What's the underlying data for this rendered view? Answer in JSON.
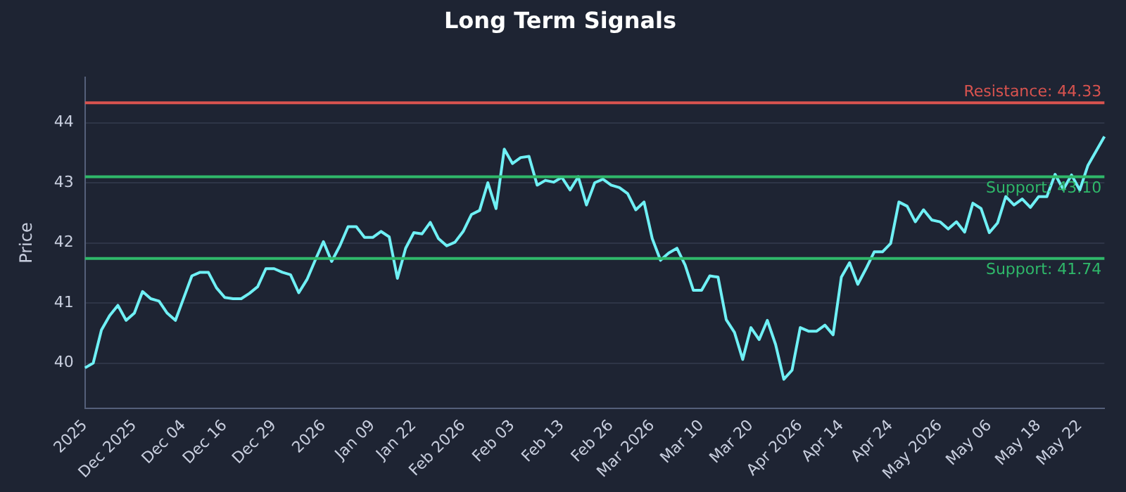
{
  "chart_data": {
    "type": "line",
    "title": "Long Term Signals",
    "ylabel": "Price",
    "categories": [
      "2025",
      null,
      null,
      null,
      null,
      null,
      "Dec 2025",
      null,
      null,
      null,
      null,
      null,
      "Dec 04",
      null,
      null,
      null,
      null,
      "Dec 16",
      null,
      null,
      null,
      null,
      null,
      "Dec 29",
      null,
      null,
      null,
      null,
      null,
      "2026",
      null,
      null,
      null,
      null,
      null,
      "Jan 09",
      null,
      null,
      null,
      null,
      "Jan 22",
      null,
      null,
      null,
      null,
      null,
      "Feb 2026",
      null,
      null,
      null,
      null,
      null,
      "Feb 03",
      null,
      null,
      null,
      null,
      null,
      "Feb 13",
      null,
      null,
      null,
      null,
      null,
      "Feb 26",
      null,
      null,
      null,
      null,
      "Mar 2026",
      null,
      null,
      null,
      null,
      null,
      "Mar 10",
      null,
      null,
      null,
      null,
      null,
      "Mar 20",
      null,
      null,
      null,
      null,
      null,
      "Apr 2026",
      null,
      null,
      null,
      null,
      "Apr 14",
      null,
      null,
      null,
      null,
      null,
      "Apr 24",
      null,
      null,
      null,
      null,
      null,
      "May 2026",
      null,
      null,
      null,
      null,
      null,
      "May 06",
      null,
      null,
      null,
      null,
      null,
      "May 18",
      null,
      null,
      null,
      null,
      "May 22",
      null,
      null,
      null
    ],
    "series": [
      {
        "color": "#6ff0f5",
        "values": [
          39.92,
          40.0,
          40.55,
          40.79,
          40.96,
          40.71,
          40.83,
          41.19,
          41.07,
          41.03,
          40.83,
          40.71,
          41.08,
          41.45,
          41.51,
          41.51,
          41.25,
          41.09,
          41.07,
          41.07,
          41.16,
          41.27,
          41.57,
          41.57,
          41.51,
          41.47,
          41.17,
          41.39,
          41.71,
          42.02,
          41.69,
          41.95,
          42.27,
          42.27,
          42.09,
          42.09,
          42.19,
          42.1,
          41.41,
          41.91,
          42.17,
          42.15,
          42.34,
          42.07,
          41.95,
          42.01,
          42.19,
          42.47,
          42.54,
          43.0,
          42.57,
          43.56,
          43.32,
          43.42,
          43.44,
          42.96,
          43.04,
          43.01,
          43.09,
          42.88,
          43.1,
          42.63,
          43.0,
          43.06,
          42.96,
          42.92,
          42.82,
          42.55,
          42.68,
          42.07,
          41.71,
          41.83,
          41.91,
          41.63,
          41.21,
          41.21,
          41.45,
          41.43,
          40.72,
          40.51,
          40.06,
          40.59,
          40.39,
          40.71,
          40.31,
          39.73,
          39.88,
          40.59,
          40.53,
          40.53,
          40.63,
          40.47,
          41.43,
          41.67,
          41.31,
          41.57,
          41.85,
          41.85,
          41.99,
          42.68,
          42.61,
          42.35,
          42.55,
          42.38,
          42.35,
          42.23,
          42.35,
          42.18,
          42.66,
          42.57,
          42.17,
          42.33,
          42.77,
          42.63,
          42.73,
          42.59,
          42.77,
          42.77,
          43.14,
          42.89,
          43.13,
          42.88,
          43.29,
          43.53,
          43.77
        ]
      }
    ],
    "ylim": [
      39.25,
      44.75
    ],
    "yticks": [
      40,
      41,
      42,
      43,
      44
    ],
    "grid": "y",
    "marker": "none",
    "line_style": "solid",
    "legend": false,
    "ref_lines": [
      {
        "axis": "y",
        "value": 44.33,
        "label": "Resistance: 44.33",
        "color": "#d9534f"
      },
      {
        "axis": "y",
        "value": 43.1,
        "label": "Support: 43.10",
        "color": "#2fb86a"
      },
      {
        "axis": "y",
        "value": 41.74,
        "label": "Support: 41.74",
        "color": "#2fb86a"
      }
    ]
  }
}
